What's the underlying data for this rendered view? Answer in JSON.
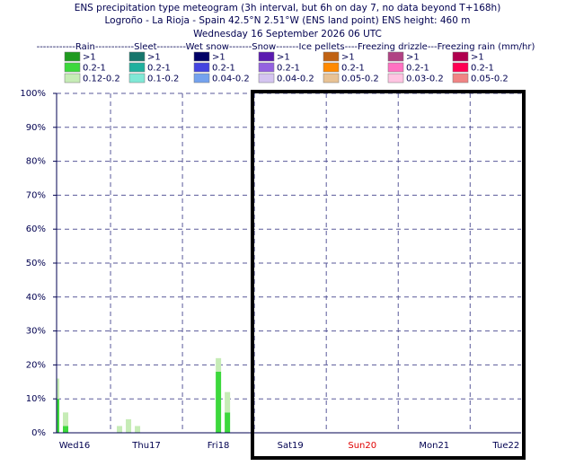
{
  "chart_data": {
    "type": "stacked-bar",
    "title": "ENS precipitation type meteogram (3h interval, but 6h on day 7, no data beyond T+168h)",
    "subtitle": "Logroño - La Rioja - Spain 42.5°N 2.51°W (ENS land point) ENS height: 460 m",
    "run_time": "Wednesday 16 September 2026 06 UTC",
    "legend_title": "------------Rain------------Sleet---------Wet snow-------Snow-------Ice pellets----Freezing drizzle---Freezing rain (mm/hr)",
    "xlim": [
      0,
      155
    ],
    "xticks": [
      {
        "value": 6,
        "label": "Wed16"
      },
      {
        "value": 30,
        "label": "Thu17"
      },
      {
        "value": 54,
        "label": "Fri18"
      },
      {
        "value": 78,
        "label": "Sat19"
      },
      {
        "value": 102,
        "label": "Sun20",
        "color": "#e00000"
      },
      {
        "value": 126,
        "label": "Mon21"
      },
      {
        "value": 150,
        "label": "Tue22"
      }
    ],
    "xgridlines": [
      18,
      42,
      66,
      90,
      114,
      138
    ],
    "ylim": [
      0,
      100
    ],
    "yticks": [
      {
        "value": 0,
        "label": "0%"
      },
      {
        "value": 10,
        "label": "10%"
      },
      {
        "value": 20,
        "label": "20%"
      },
      {
        "value": 30,
        "label": "30%"
      },
      {
        "value": 40,
        "label": "40%"
      },
      {
        "value": 50,
        "label": "50%"
      },
      {
        "value": 60,
        "label": "60%"
      },
      {
        "value": 70,
        "label": "70%"
      },
      {
        "value": 80,
        "label": "80%"
      },
      {
        "value": 90,
        "label": "90%"
      },
      {
        "value": 100,
        "label": "100%"
      }
    ],
    "grid": true,
    "x": [
      0,
      3,
      21,
      24,
      27,
      54,
      57
    ],
    "series": [
      {
        "name": ">1",
        "color": "#1e9a1e",
        "values": [
          0,
          0,
          0,
          0,
          0,
          0,
          0
        ]
      },
      {
        "name": "0.2-1",
        "color": "#3cd83c",
        "values": [
          10,
          2,
          0,
          0,
          0,
          18,
          6
        ]
      },
      {
        "name": "0.12-0.2",
        "color": "#c6ecb6",
        "values": [
          6,
          4,
          2,
          4,
          2,
          4,
          6
        ]
      },
      {
        "name": ">1",
        "color": "#16766c",
        "values": [
          0,
          0,
          0,
          0,
          0,
          0,
          0
        ]
      },
      {
        "name": "0.2-1",
        "color": "#20b09e",
        "values": [
          0,
          0,
          0,
          0,
          0,
          0,
          0
        ]
      },
      {
        "name": "0.1-0.2",
        "color": "#80e8d6",
        "values": [
          0,
          0,
          0,
          0,
          0,
          0,
          0
        ]
      },
      {
        "name": ">1",
        "color": "#000066",
        "values": [
          0,
          0,
          0,
          0,
          0,
          0,
          0
        ]
      },
      {
        "name": "0.2-1",
        "color": "#4444e0",
        "values": [
          0,
          0,
          0,
          0,
          0,
          0,
          0
        ]
      },
      {
        "name": "0.04-0.2",
        "color": "#74a2ee",
        "values": [
          0,
          0,
          0,
          0,
          0,
          0,
          0
        ]
      },
      {
        "name": ">1",
        "color": "#5a1ab0",
        "values": [
          0,
          0,
          0,
          0,
          0,
          0,
          0
        ]
      },
      {
        "name": "0.2-1",
        "color": "#9462e0",
        "values": [
          0,
          0,
          0,
          0,
          0,
          0,
          0
        ]
      },
      {
        "name": "0.04-0.2",
        "color": "#d4c4f0",
        "values": [
          0,
          0,
          0,
          0,
          0,
          0,
          0
        ]
      },
      {
        "name": ">1",
        "color": "#c06212",
        "values": [
          0,
          0,
          0,
          0,
          0,
          0,
          0
        ]
      },
      {
        "name": "0.2-1",
        "color": "#ff8a00",
        "values": [
          0,
          0,
          0,
          0,
          0,
          0,
          0
        ]
      },
      {
        "name": "0.05-0.2",
        "color": "#e8c294",
        "values": [
          0,
          0,
          0,
          0,
          0,
          0,
          0
        ]
      },
      {
        "name": ">1",
        "color": "#b04284",
        "values": [
          0,
          0,
          0,
          0,
          0,
          0,
          0
        ]
      },
      {
        "name": "0.2-1",
        "color": "#ff72c2",
        "values": [
          0,
          0,
          0,
          0,
          0,
          0,
          0
        ]
      },
      {
        "name": "0.03-0.2",
        "color": "#ffc4e2",
        "values": [
          0,
          0,
          0,
          0,
          0,
          0,
          0
        ]
      },
      {
        "name": ">1",
        "color": "#b0004e",
        "values": [
          0,
          0,
          0,
          0,
          0,
          0,
          0
        ]
      },
      {
        "name": "0.2-1",
        "color": "#ff0052",
        "values": [
          0,
          0,
          0,
          0,
          0,
          0,
          0
        ]
      },
      {
        "name": "0.05-0.2",
        "color": "#f08484",
        "values": [
          0,
          0,
          0,
          0,
          0,
          0,
          0
        ]
      }
    ]
  }
}
